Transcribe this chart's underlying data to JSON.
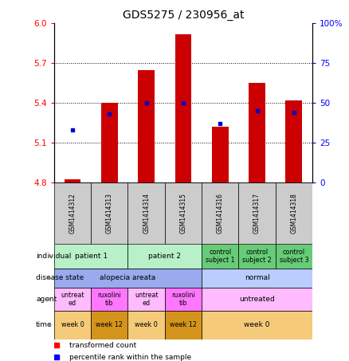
{
  "title": "GDS5275 / 230956_at",
  "samples": [
    "GSM1414312",
    "GSM1414313",
    "GSM1414314",
    "GSM1414315",
    "GSM1414316",
    "GSM1414317",
    "GSM1414318"
  ],
  "bar_values": [
    4.82,
    5.4,
    5.65,
    5.92,
    5.22,
    5.55,
    5.42
  ],
  "percentile_values": [
    33,
    43,
    50,
    50,
    37,
    45,
    44
  ],
  "ylim_left": [
    4.8,
    6.0
  ],
  "ylim_right": [
    0,
    100
  ],
  "yticks_left": [
    4.8,
    5.1,
    5.4,
    5.7,
    6.0
  ],
  "yticks_right": [
    0,
    25,
    50,
    75,
    100
  ],
  "hline_values": [
    5.1,
    5.4,
    5.7
  ],
  "bar_color": "#cc0000",
  "dot_color": "#0000cc",
  "bar_width": 0.45,
  "individual_data": [
    {
      "span": [
        0,
        2
      ],
      "label": "patient 1",
      "color": "#b8f0c8"
    },
    {
      "span": [
        2,
        4
      ],
      "label": "patient 2",
      "color": "#b8f0c8"
    },
    {
      "span": [
        4,
        5
      ],
      "label": "control\nsubject 1",
      "color": "#66cc77"
    },
    {
      "span": [
        5,
        6
      ],
      "label": "control\nsubject 2",
      "color": "#66cc77"
    },
    {
      "span": [
        6,
        7
      ],
      "label": "control\nsubject 3",
      "color": "#66cc77"
    }
  ],
  "disease_data": [
    {
      "span": [
        0,
        4
      ],
      "label": "alopecia areata",
      "color": "#99aaee"
    },
    {
      "span": [
        4,
        7
      ],
      "label": "normal",
      "color": "#bbccff"
    }
  ],
  "agent_data": [
    {
      "span": [
        0,
        1
      ],
      "label": "untreat\ned",
      "color": "#ffbbff"
    },
    {
      "span": [
        1,
        2
      ],
      "label": "ruxolini\ntib",
      "color": "#ff77ff"
    },
    {
      "span": [
        2,
        3
      ],
      "label": "untreat\ned",
      "color": "#ffbbff"
    },
    {
      "span": [
        3,
        4
      ],
      "label": "ruxolini\ntib",
      "color": "#ff77ff"
    },
    {
      "span": [
        4,
        7
      ],
      "label": "untreated",
      "color": "#ffbbff"
    }
  ],
  "time_data": [
    {
      "span": [
        0,
        1
      ],
      "label": "week 0",
      "color": "#f5cb7a"
    },
    {
      "span": [
        1,
        2
      ],
      "label": "week 12",
      "color": "#d4931a"
    },
    {
      "span": [
        2,
        3
      ],
      "label": "week 0",
      "color": "#f5cb7a"
    },
    {
      "span": [
        3,
        4
      ],
      "label": "week 12",
      "color": "#d4931a"
    },
    {
      "span": [
        4,
        7
      ],
      "label": "week 0",
      "color": "#f5cb7a"
    }
  ],
  "row_labels": [
    "individual",
    "disease state",
    "agent",
    "time"
  ],
  "legend_red": "transformed count",
  "legend_blue": "percentile rank within the sample"
}
